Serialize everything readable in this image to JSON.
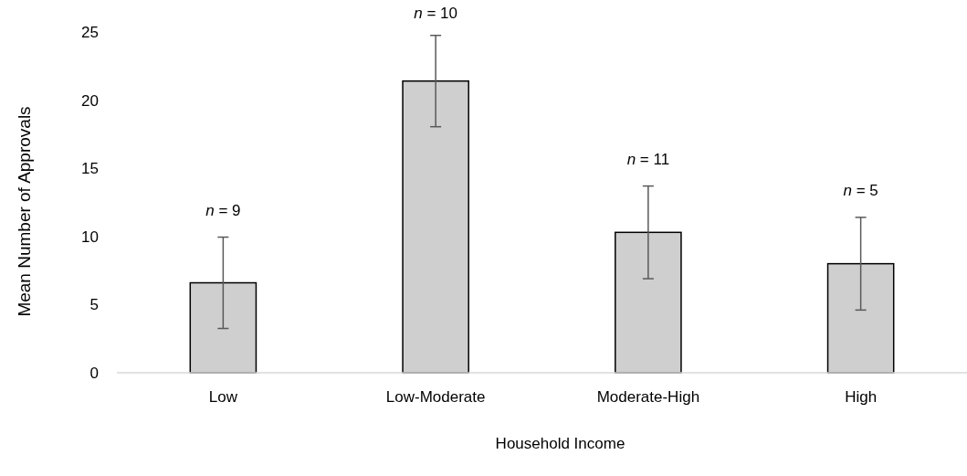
{
  "chart_data": {
    "type": "bar",
    "xlabel": "Household Income",
    "ylabel": "Mean Number of Approvals",
    "categories": [
      "Low",
      "Low-Moderate",
      "Moderate-High",
      "High"
    ],
    "values": [
      6.6,
      21.4,
      10.3,
      8.0
    ],
    "errors": [
      3.35,
      3.35,
      3.4,
      3.4
    ],
    "color": "#d0cfd0",
    "ylim": [
      0,
      25
    ],
    "yticks": [
      0,
      5,
      10,
      15,
      20,
      25
    ],
    "grid": false,
    "annotations": [
      "n = 9",
      "n = 10",
      "n = 11",
      "n = 5"
    ]
  }
}
